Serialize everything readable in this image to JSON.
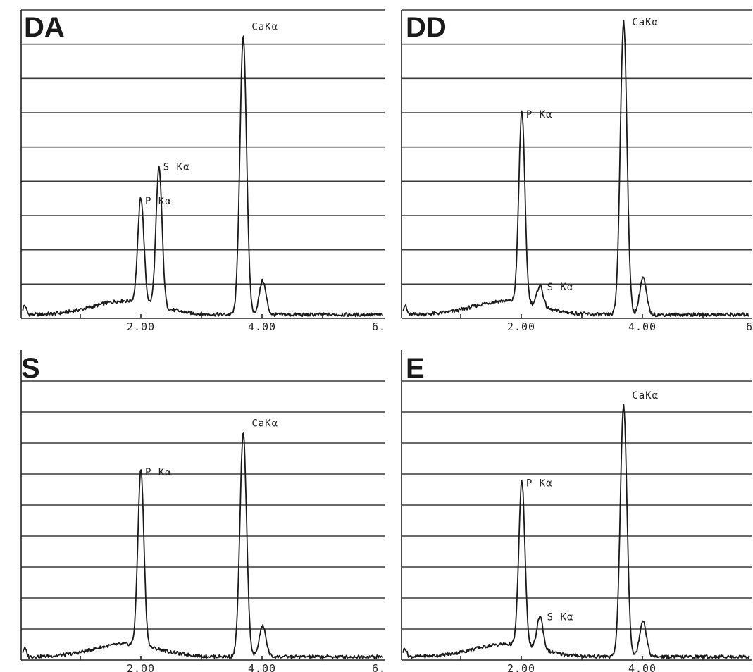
{
  "chart_data": [
    {
      "type": "line",
      "title": "DA",
      "x_ticks": [
        "2.00",
        "4.00",
        "6."
      ],
      "xlim": [
        0,
        6
      ],
      "gridlines": 9,
      "grid": true,
      "peaks": [
        {
          "label": "P Kα",
          "x": 2.0,
          "y": 0.34
        },
        {
          "label": "S Kα",
          "x": 2.3,
          "y": 0.45
        },
        {
          "label": "CaKα",
          "x": 3.69,
          "y": 0.9
        },
        {
          "label": "",
          "x": 4.01,
          "y": 0.11
        }
      ]
    },
    {
      "type": "line",
      "title": "DD",
      "x_ticks": [
        "2.00",
        "4.00",
        "6"
      ],
      "xlim": [
        0,
        6
      ],
      "gridlines": 9,
      "grid": true,
      "peaks": [
        {
          "label": "P Kα",
          "x": 2.01,
          "y": 0.62
        },
        {
          "label": "S Kα",
          "x": 2.31,
          "y": 0.07
        },
        {
          "label": "CaKα",
          "x": 3.69,
          "y": 0.95
        },
        {
          "label": "",
          "x": 4.01,
          "y": 0.12
        }
      ]
    },
    {
      "type": "line",
      "title": "S",
      "x_ticks": [
        "2.00",
        "4.00",
        "6."
      ],
      "xlim": [
        0,
        6
      ],
      "gridlines": 9,
      "grid": true,
      "peaks": [
        {
          "label": "P Kα",
          "x": 2.0,
          "y": 0.63
        },
        {
          "label": "CaKα",
          "x": 3.69,
          "y": 0.8
        },
        {
          "label": "",
          "x": 4.01,
          "y": 0.11
        }
      ]
    },
    {
      "type": "line",
      "title": "E",
      "x_ticks": [
        "2.00",
        "4.00"
      ],
      "xlim": [
        0,
        6
      ],
      "gridlines": 9,
      "grid": true,
      "peaks": [
        {
          "label": "P Kα",
          "x": 2.01,
          "y": 0.59
        },
        {
          "label": "S Kα",
          "x": 2.31,
          "y": 0.12
        },
        {
          "label": "CaKα",
          "x": 3.69,
          "y": 0.9
        },
        {
          "label": "",
          "x": 4.01,
          "y": 0.13
        }
      ]
    }
  ]
}
